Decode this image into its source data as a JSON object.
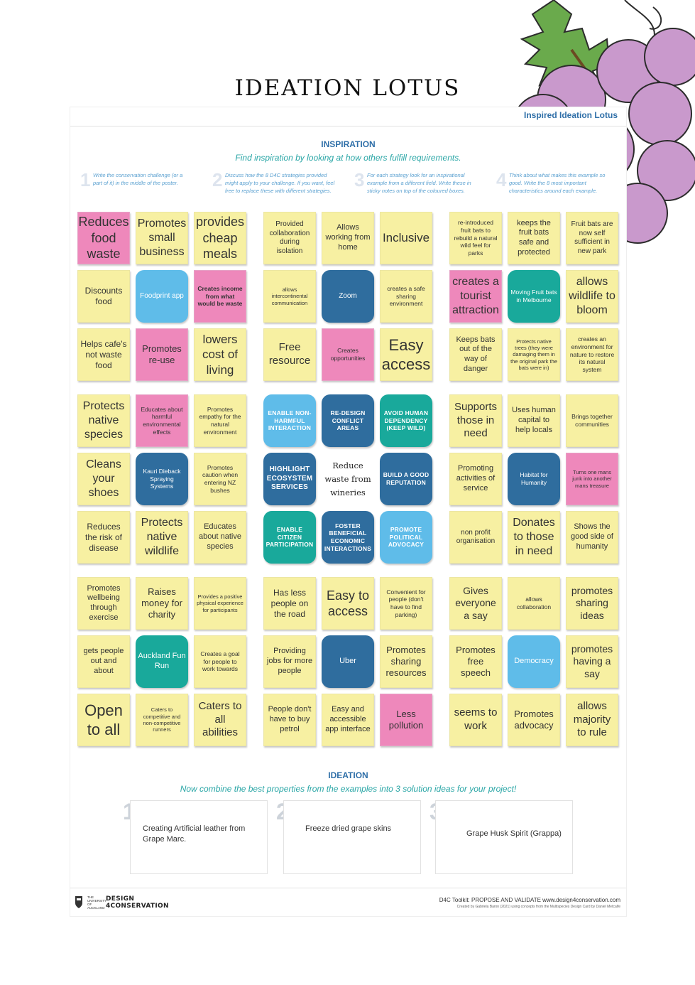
{
  "page": {
    "title": "IDEATION LOTUS"
  },
  "poster": {
    "header_title": "Inspired Ideation Lotus",
    "inspiration_heading": "INSPIRATION",
    "inspiration_subtitle": "Find inspiration by looking at how others fulfill requirements.",
    "steps": [
      {
        "num": "1",
        "text": "Write the conservation challenge (or a part of it) in the middle of the poster."
      },
      {
        "num": "2",
        "text": "Discuss how the 8 D4C strategies provided might apply to your challenge. If you want, feel free to replace these with different strategies."
      },
      {
        "num": "3",
        "text": "For each strategy look for an inspirational example from a different field. Write these in sticky notes on top of the coloured boxes."
      },
      {
        "num": "4",
        "text": "Think about what makes this example so good. Write the 8 most important characteristics around each example."
      }
    ],
    "ideation_heading": "IDEATION",
    "ideation_subtitle": "Now combine the best properties from the examples into 3 solution ideas for your project!",
    "ideas": [
      {
        "num": "1",
        "text": "Creating Artificial leather from Grape Marc."
      },
      {
        "num": "2",
        "text": "Freeze dried grape skins"
      },
      {
        "num": "3",
        "text": "Grape Husk Spirit (Grappa)"
      }
    ],
    "footer_brand_line1": "DESIGN",
    "footer_brand_line2": "4CONSERVATION",
    "footer_university": "THE UNIVERSITY OF AUCKLAND",
    "footer_text": "D4C Toolkit: PROPOSE AND VALIDATE www.design4conservation.com",
    "footer_credit": "Created by Gabriela Baron (2021) using concepts from the Multispecies Design Card by Daniel Metcalfe"
  },
  "notes": [
    {
      "text": "Reduces food waste",
      "color": "pink",
      "fs": 15
    },
    {
      "text": "Promotes small business",
      "color": "yellow",
      "fs": 13
    },
    {
      "text": "provides cheap meals",
      "color": "yellow",
      "fs": 15
    },
    {
      "text": "Provided collaboration during isolation",
      "color": "yellow",
      "fs": 7
    },
    {
      "text": "Allows working from home",
      "color": "yellow",
      "fs": 8
    },
    {
      "text": "Inclusive",
      "color": "yellow",
      "fs": 14
    },
    {
      "text": "re-introduced fruit bats to rebuild a natural wild feel for parks",
      "color": "yellow",
      "fs": 6
    },
    {
      "text": "keeps the fruit bats safe and protected",
      "color": "yellow",
      "fs": 8
    },
    {
      "text": "Fruit bats are now self sufficient in new park",
      "color": "yellow",
      "fs": 7
    },
    {
      "text": "Discounts food",
      "color": "yellow",
      "fs": 9
    },
    {
      "text": "Foodprint app",
      "color": "lblue",
      "fs": 7
    },
    {
      "text": "Creates income from what would be waste",
      "color": "pink",
      "fs": 6,
      "bold": true
    },
    {
      "text": "allows intercontinental communication",
      "color": "yellow",
      "fs": 5
    },
    {
      "text": "Zoom",
      "color": "dblue",
      "fs": 7
    },
    {
      "text": "creates a safe sharing environment",
      "color": "yellow",
      "fs": 6
    },
    {
      "text": "creates a tourist attraction",
      "color": "pink",
      "fs": 13
    },
    {
      "text": "Moving Fruit bats in Melbourne",
      "color": "teal",
      "fs": 6
    },
    {
      "text": "allows wildlife to bloom",
      "color": "yellow",
      "fs": 13
    },
    {
      "text": "Helps cafe's not waste food",
      "color": "yellow",
      "fs": 9
    },
    {
      "text": "Promotes re-use",
      "color": "pink",
      "fs": 10
    },
    {
      "text": "lowers cost of living",
      "color": "yellow",
      "fs": 14
    },
    {
      "text": "Free resource",
      "color": "yellow",
      "fs": 12
    },
    {
      "text": "Creates opportunities",
      "color": "pink",
      "fs": 6
    },
    {
      "text": "Easy access",
      "color": "yellow",
      "fs": 17
    },
    {
      "text": "Keeps bats out of the way of danger",
      "color": "yellow",
      "fs": 8
    },
    {
      "text": "Protects native trees (they were damaging them in the original park the bats were in)",
      "color": "yellow",
      "fs": 5
    },
    {
      "text": "creates an environment for nature to restore its natural system",
      "color": "yellow",
      "fs": 6
    },
    {
      "text": "Protects native species",
      "color": "yellow",
      "fs": 13
    },
    {
      "text": "Educates about harmful environmental effects",
      "color": "pink",
      "fs": 6
    },
    {
      "text": "Promotes empathy for the natural environment",
      "color": "yellow",
      "fs": 6
    },
    {
      "text": "ENABLE NON-HARMFUL INTERACTION",
      "color": "lblue",
      "fs": 6,
      "strategy": true
    },
    {
      "text": "RE-DESIGN CONFLICT AREAS",
      "color": "dblue",
      "fs": 6,
      "strategy": true
    },
    {
      "text": "AVOID HUMAN DEPENDENCY (KEEP WILD)",
      "color": "teal",
      "fs": 6,
      "strategy": true
    },
    {
      "text": "Supports those in need",
      "color": "yellow",
      "fs": 12
    },
    {
      "text": "Uses human capital to help locals",
      "color": "yellow",
      "fs": 8
    },
    {
      "text": "Brings together communities",
      "color": "yellow",
      "fs": 6
    },
    {
      "text": "Cleans your shoes",
      "color": "yellow",
      "fs": 13
    },
    {
      "text": "Kauri Dieback Spraying Systems",
      "color": "dblue",
      "fs": 6
    },
    {
      "text": "Promotes caution when entering NZ bushes",
      "color": "yellow",
      "fs": 6
    },
    {
      "text": "HIGHLIGHT ECOSYSTEM SERVICES",
      "color": "dblue",
      "fs": 7,
      "strategy": true
    },
    {
      "text": "Reduce waste from wineries",
      "color": "white",
      "center": true
    },
    {
      "text": "BUILD A GOOD REPUTATION",
      "color": "dblue",
      "fs": 6,
      "strategy": true
    },
    {
      "text": "Promoting activities of service",
      "color": "yellow",
      "fs": 8
    },
    {
      "text": "Habitat for Humanity",
      "color": "dblue",
      "fs": 6
    },
    {
      "text": "Turns one mans junk into another mans treasure",
      "color": "pink",
      "fs": 5
    },
    {
      "text": "Reduces the risk of disease",
      "color": "yellow",
      "fs": 9
    },
    {
      "text": "Protects native wildlife",
      "color": "yellow",
      "fs": 13
    },
    {
      "text": "Educates about native species",
      "color": "yellow",
      "fs": 8
    },
    {
      "text": "ENABLE CITIZEN PARTICIPATION",
      "color": "teal",
      "fs": 6,
      "strategy": true
    },
    {
      "text": "FOSTER BENEFICIAL ECONOMIC INTERACTIONS",
      "color": "dblue",
      "fs": 6,
      "strategy": true
    },
    {
      "text": "PROMOTE POLITICAL ADVOCACY",
      "color": "lblue",
      "fs": 6,
      "strategy": true
    },
    {
      "text": "non profit organisation",
      "color": "yellow",
      "fs": 7
    },
    {
      "text": "Donates to those in need",
      "color": "yellow",
      "fs": 13
    },
    {
      "text": "Shows the good side of humanity",
      "color": "yellow",
      "fs": 8
    },
    {
      "text": "Promotes wellbeing through exercise",
      "color": "yellow",
      "fs": 8
    },
    {
      "text": "Raises money for charity",
      "color": "yellow",
      "fs": 10
    },
    {
      "text": "Provides a positive physical experience for participants",
      "color": "yellow",
      "fs": 5
    },
    {
      "text": "Has less people on the road",
      "color": "yellow",
      "fs": 9
    },
    {
      "text": "Easy to access",
      "color": "yellow",
      "fs": 15
    },
    {
      "text": "Convenient for people (don't have to find parking)",
      "color": "yellow",
      "fs": 6
    },
    {
      "text": "Gives everyone a say",
      "color": "yellow",
      "fs": 11
    },
    {
      "text": "allows collaboration",
      "color": "yellow",
      "fs": 6
    },
    {
      "text": "promotes sharing ideas",
      "color": "yellow",
      "fs": 11
    },
    {
      "text": "gets people out and about",
      "color": "yellow",
      "fs": 8
    },
    {
      "text": "Auckland Fun Run",
      "color": "teal",
      "fs": 8
    },
    {
      "text": "Creates a goal for people to work towards",
      "color": "yellow",
      "fs": 6
    },
    {
      "text": "Providing jobs for more people",
      "color": "yellow",
      "fs": 8
    },
    {
      "text": "Uber",
      "color": "dblue",
      "fs": 8
    },
    {
      "text": "Promotes sharing resources",
      "color": "yellow",
      "fs": 10
    },
    {
      "text": "Promotes free speech",
      "color": "yellow",
      "fs": 10
    },
    {
      "text": "Democracy",
      "color": "lblue",
      "fs": 8
    },
    {
      "text": "promotes having a say",
      "color": "yellow",
      "fs": 11
    },
    {
      "text": "Open to all",
      "color": "yellow",
      "fs": 17
    },
    {
      "text": "Caters to competitive and non-competitive runners",
      "color": "yellow",
      "fs": 5
    },
    {
      "text": "Caters to all abilities",
      "color": "yellow",
      "fs": 12
    },
    {
      "text": "People don't have to buy petrol",
      "color": "yellow",
      "fs": 8
    },
    {
      "text": "Easy and accessible app interface",
      "color": "yellow",
      "fs": 8
    },
    {
      "text": "Less pollution",
      "color": "pink",
      "fs": 10
    },
    {
      "text": "seems to work",
      "color": "yellow",
      "fs": 12
    },
    {
      "text": "Promotes advocacy",
      "color": "yellow",
      "fs": 10
    },
    {
      "text": "allows majority to rule",
      "color": "yellow",
      "fs": 12
    }
  ]
}
